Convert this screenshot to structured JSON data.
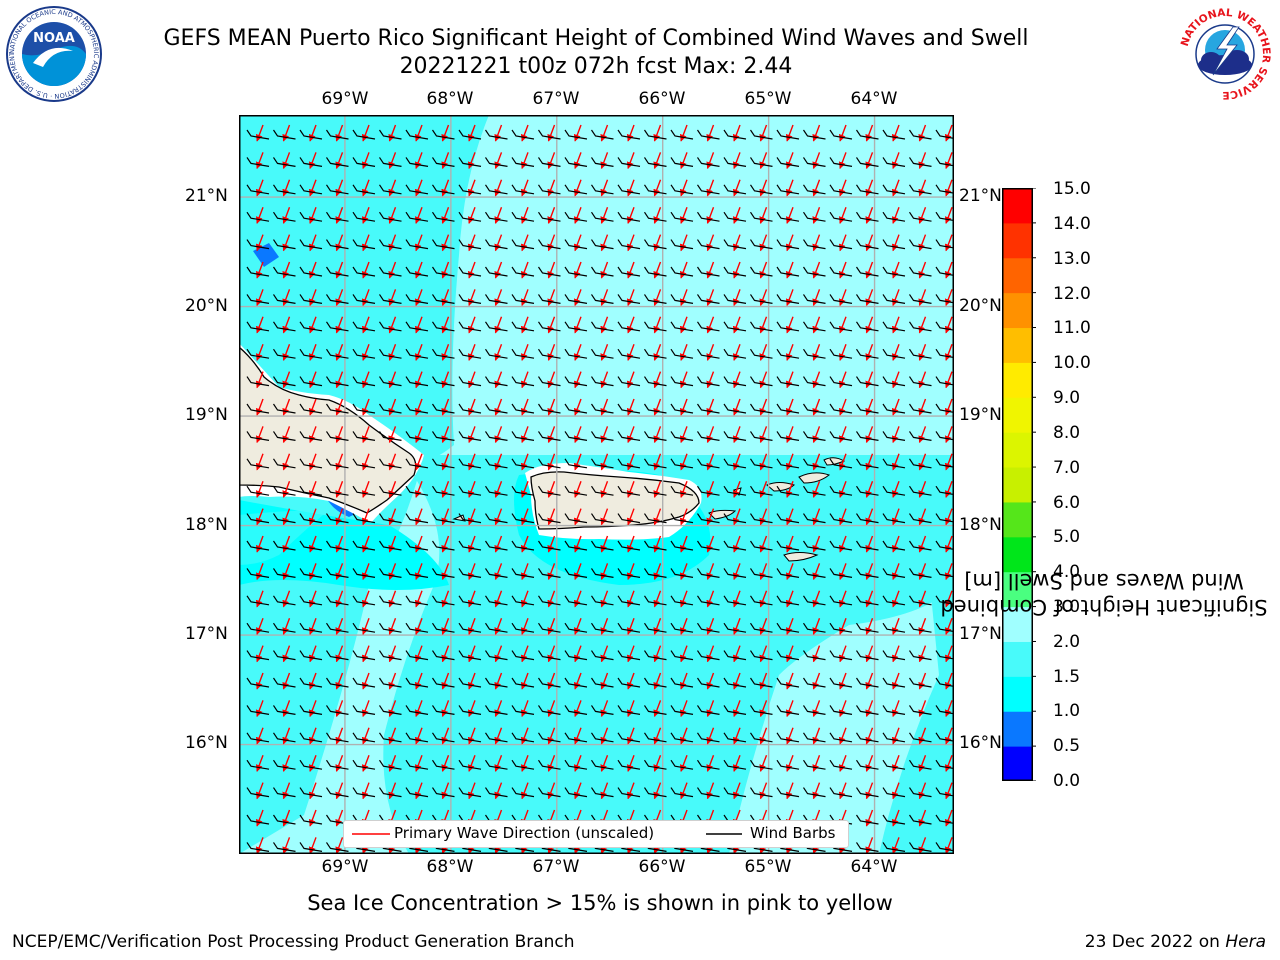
{
  "title": {
    "line1": "GEFS MEAN Puerto Rico Significant Height of Combined Wind Waves and Swell",
    "line2": "20221221 t00z 072h fcst   Max: 2.44"
  },
  "logos": {
    "noaa": {
      "text": "NOAA",
      "ring_text": "NATIONAL OCEANIC AND ATMOSPHERIC ADMINISTRATION · U.S. DEPARTMENT OF COMMERCE",
      "icon": "noaa-logo"
    },
    "nws": {
      "ring_text": "NATIONAL WEATHER SERVICE",
      "icon": "nws-logo"
    }
  },
  "map": {
    "lon_labels": [
      "69°W",
      "68°W",
      "67°W",
      "66°W",
      "65°W",
      "64°W"
    ],
    "lat_labels": [
      "21°N",
      "20°N",
      "19°N",
      "18°N",
      "17°N",
      "16°N"
    ],
    "lon_range": [
      -70.0,
      -63.25
    ],
    "lat_range": [
      15.0,
      21.75
    ],
    "grid": true,
    "colors": {
      "land": "#efecdf",
      "coast": "#000000",
      "grid": "#b0b0b0",
      "wave_arrow": "#ff0000",
      "wind_barb": "#000000"
    },
    "max_value": 2.44
  },
  "colorbar": {
    "title_line1": "Significant Height of Combined",
    "title_line2": "Wind Waves and Swell [m]",
    "ticks": [
      "15.0",
      "14.0",
      "13.0",
      "12.0",
      "11.0",
      "10.0",
      "9.0",
      "8.0",
      "7.0",
      "6.0",
      "5.0",
      "4.0",
      "3.0",
      "2.0",
      "1.5",
      "1.0",
      "0.5",
      "0.0"
    ],
    "bands": [
      {
        "from": 0.0,
        "to": 0.5,
        "color": "#0000ff"
      },
      {
        "from": 0.5,
        "to": 1.0,
        "color": "#0a78ff"
      },
      {
        "from": 1.0,
        "to": 1.5,
        "color": "#00ffff"
      },
      {
        "from": 1.5,
        "to": 2.0,
        "color": "#48fafa"
      },
      {
        "from": 2.0,
        "to": 3.0,
        "color": "#a0ffff"
      },
      {
        "from": 3.0,
        "to": 4.0,
        "color": "#4aff80"
      },
      {
        "from": 4.0,
        "to": 5.0,
        "color": "#00e61a"
      },
      {
        "from": 5.0,
        "to": 6.0,
        "color": "#55e61a"
      },
      {
        "from": 6.0,
        "to": 7.0,
        "color": "#c8f000"
      },
      {
        "from": 7.0,
        "to": 8.0,
        "color": "#dcf500"
      },
      {
        "from": 8.0,
        "to": 9.0,
        "color": "#f0f500"
      },
      {
        "from": 9.0,
        "to": 10.0,
        "color": "#ffeb00"
      },
      {
        "from": 10.0,
        "to": 11.0,
        "color": "#ffbe00"
      },
      {
        "from": 11.0,
        "to": 12.0,
        "color": "#ff9100"
      },
      {
        "from": 12.0,
        "to": 13.0,
        "color": "#ff6400"
      },
      {
        "from": 13.0,
        "to": 14.0,
        "color": "#ff3200"
      },
      {
        "from": 14.0,
        "to": 15.0,
        "color": "#ff0000"
      }
    ]
  },
  "legend": {
    "wave_label": "Primary Wave Direction (unscaled)",
    "barb_label": "Wind Barbs",
    "position": "bottom-center"
  },
  "note": "Sea Ice Concentration > 15% is shown in pink to yellow",
  "footer": {
    "left": "NCEP/EMC/Verification Post Processing Product Generation Branch",
    "right_date": "23 Dec 2022 on ",
    "right_host": "Hera"
  }
}
